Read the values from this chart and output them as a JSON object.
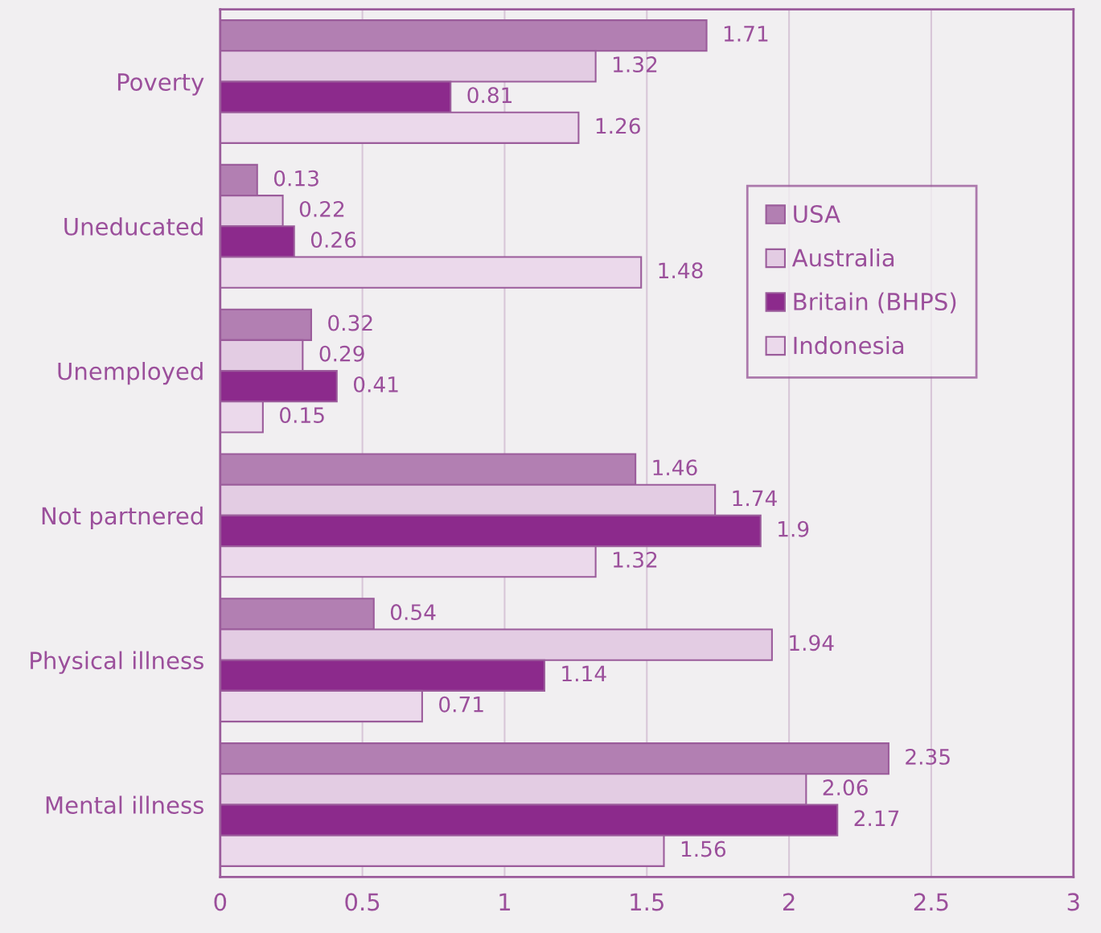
{
  "chart_data": {
    "type": "bar",
    "orientation": "horizontal",
    "categories": [
      "Poverty",
      "Uneducated",
      "Unemployed",
      "Not partnered",
      "Physical illness",
      "Mental illness"
    ],
    "series": [
      {
        "name": "USA",
        "color": "#b27fb2",
        "values": [
          1.71,
          0.13,
          0.32,
          1.46,
          0.54,
          2.35
        ]
      },
      {
        "name": "Australia",
        "color": "#e3cce3",
        "values": [
          1.32,
          0.22,
          0.29,
          1.74,
          1.94,
          2.06
        ]
      },
      {
        "name": "Britain (BHPS)",
        "color": "#8c2a8c",
        "values": [
          0.81,
          0.26,
          0.41,
          1.9,
          1.14,
          2.17
        ]
      },
      {
        "name": "Indonesia",
        "color": "#ebd9eb",
        "values": [
          1.26,
          1.48,
          0.15,
          1.32,
          0.71,
          1.56
        ]
      }
    ],
    "xlim": [
      0,
      3
    ],
    "xticks": [
      0,
      0.5,
      1,
      1.5,
      2,
      2.5,
      3
    ],
    "grid": "x",
    "legend": "top right",
    "data_labels": true
  }
}
